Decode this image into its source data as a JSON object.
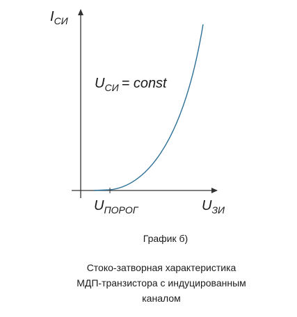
{
  "axes": {
    "y_label": {
      "main": "I",
      "sub": "СИ"
    },
    "x_label": {
      "main": "U",
      "sub": "ЗИ"
    },
    "threshold_label": {
      "main": "U",
      "sub": "ПОРОГ"
    },
    "condition": {
      "main": "U",
      "sub": "СИ",
      "rest": "= const"
    }
  },
  "graph_title": "График  б)",
  "caption": [
    "Стоко-затворная характеристика",
    "МДП-транзистора с индуцированным",
    "каналом"
  ]
}
